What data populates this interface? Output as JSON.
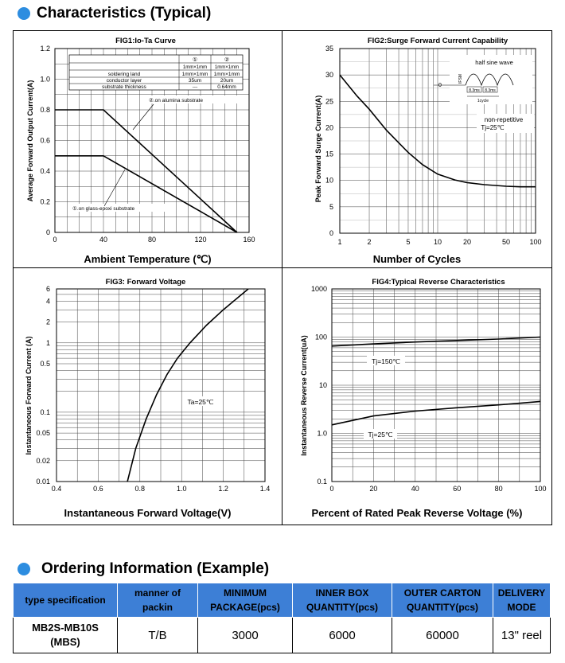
{
  "section1": {
    "title": "Characteristics (Typical)"
  },
  "fig1": {
    "title": "FIG1:Io-Ta Curve",
    "ylabel": "Average Forward Output Current(A)",
    "caption": "Ambient Temperature (℃)",
    "yticks": [
      "0",
      "0.2",
      "0.4",
      "0.6",
      "0.8",
      "1.0",
      "1.2"
    ],
    "xticks": [
      "0",
      "40",
      "80",
      "120",
      "160"
    ],
    "table": {
      "header": [
        "",
        "①",
        "②"
      ],
      "subheader": [
        "",
        "1mm×1mm",
        "1mm×1mm"
      ],
      "rows": [
        [
          "soldering land",
          "1mm×1mm",
          "1mm×1mm"
        ],
        [
          "conductor layer",
          "35um",
          "20um"
        ],
        [
          "substrate thickness",
          "---",
          "0.64mm"
        ]
      ]
    },
    "annot_alumina": "②.on alumina substrate",
    "annot_glass": "①.on glass-epoxi substrate"
  },
  "fig2": {
    "title": "FIG2:Surge Forward Current Capability",
    "ylabel": "Peak Forward Surge Current(A)",
    "caption": "Number of Cycles",
    "yticks": [
      "0",
      "5",
      "10",
      "15",
      "20",
      "25",
      "30",
      "35"
    ],
    "xticks": [
      "1",
      "2",
      "5",
      "10",
      "20",
      "50",
      "100"
    ],
    "inset_label": "half sine wave",
    "inset_ifsm": "IFSM",
    "inset_t1": "8.3ms",
    "inset_t2": "8.3ms",
    "inset_cycle": "1cycle",
    "inset_zero": "0",
    "note1": "non-repetitive",
    "note2": "Tj=25℃"
  },
  "fig3": {
    "title": "FIG3: Forward Voltage",
    "ylabel": "Instantaneous Forward Current (A)",
    "caption": "Instantaneous Forward Voltage(V)",
    "yticks": [
      "0.01",
      "0.02",
      "0.05",
      "0.1",
      "0.5",
      "1",
      "2",
      "4",
      "6"
    ],
    "xticks": [
      "0.4",
      "0.6",
      "0.8",
      "1.0",
      "1.2",
      "1.4"
    ],
    "note": "Ta=25℃"
  },
  "fig4": {
    "title": "FIG4:Typical Reverse Characteristics",
    "ylabel": "Instantaneous Reverse Current(uA)",
    "caption": "Percent of Rated Peak Reverse Voltage (%)",
    "yticks": [
      "0.1",
      "1.0",
      "10",
      "100",
      "1000"
    ],
    "xticks": [
      "0",
      "20",
      "40",
      "60",
      "80",
      "100"
    ],
    "label_150": "Tj=150℃",
    "label_25": "Tj=25℃"
  },
  "chart_data": [
    {
      "type": "line",
      "title": "FIG1:Io-Ta Curve",
      "xlabel": "Ambient Temperature (℃)",
      "ylabel": "Average Forward Output Current(A)",
      "xlim": [
        0,
        160
      ],
      "ylim": [
        0,
        1.2
      ],
      "series": [
        {
          "name": "②.on alumina substrate",
          "x": [
            0,
            40,
            150
          ],
          "y": [
            0.8,
            0.8,
            0
          ]
        },
        {
          "name": "①.on glass-epoxi substrate",
          "x": [
            0,
            40,
            150
          ],
          "y": [
            0.5,
            0.5,
            0
          ]
        }
      ]
    },
    {
      "type": "line",
      "title": "FIG2:Surge Forward Current Capability",
      "xlabel": "Number of Cycles",
      "ylabel": "Peak Forward Surge Current(A)",
      "xscale": "log",
      "xlim": [
        1,
        100
      ],
      "ylim": [
        0,
        35
      ],
      "series": [
        {
          "x": [
            1,
            1.5,
            2,
            3,
            5,
            7,
            10,
            15,
            20,
            30,
            50,
            70,
            100
          ],
          "y": [
            30,
            26,
            23.5,
            19.5,
            15.3,
            13,
            11.2,
            10.1,
            9.6,
            9.2,
            8.9,
            8.8,
            8.8
          ]
        }
      ]
    },
    {
      "type": "line",
      "title": "FIG3: Forward Voltage",
      "xlabel": "Instantaneous Forward Voltage(V)",
      "ylabel": "Instantaneous Forward Current (A)",
      "yscale": "log",
      "xlim": [
        0.4,
        1.4
      ],
      "ylim": [
        0.01,
        6
      ],
      "series": [
        {
          "x": [
            0.74,
            0.78,
            0.83,
            0.88,
            0.93,
            0.98,
            1.04,
            1.12,
            1.2,
            1.32
          ],
          "y": [
            0.01,
            0.03,
            0.08,
            0.18,
            0.35,
            0.6,
            1.0,
            1.8,
            3.0,
            6.0
          ]
        }
      ]
    },
    {
      "type": "line",
      "title": "FIG4:Typical Reverse Characteristics",
      "xlabel": "Percent of Rated Peak Reverse Voltage (%)",
      "ylabel": "Instantaneous Reverse Current(uA)",
      "yscale": "log",
      "xlim": [
        0,
        100
      ],
      "ylim": [
        0.1,
        1000
      ],
      "series": [
        {
          "name": "Tj=150℃",
          "x": [
            0,
            20,
            40,
            60,
            80,
            100
          ],
          "y": [
            65,
            72,
            79,
            85,
            91,
            100
          ]
        },
        {
          "name": "Tj=25℃",
          "x": [
            0,
            20,
            40,
            60,
            80,
            100
          ],
          "y": [
            1.5,
            2.3,
            2.9,
            3.4,
            3.9,
            4.6
          ]
        }
      ]
    }
  ],
  "section2": {
    "title": "Ordering Information (Example)"
  },
  "order_table": {
    "headers": [
      [
        "type specification",
        ""
      ],
      [
        "manner of",
        "packin"
      ],
      [
        "MINIMUM",
        "PACKAGE(pcs)"
      ],
      [
        "INNER BOX",
        "QUANTITY(pcs)"
      ],
      [
        "OUTER CARTON",
        "QUANTITY(pcs)"
      ],
      [
        "DELIVERY",
        "MODE"
      ]
    ],
    "row": {
      "type_line1": "MB2S-MB10S",
      "type_line2": "(MBS)",
      "packing": "T/B",
      "min_package": "3000",
      "inner_box": "6000",
      "outer_carton": "60000",
      "delivery": "13\" reel"
    }
  }
}
